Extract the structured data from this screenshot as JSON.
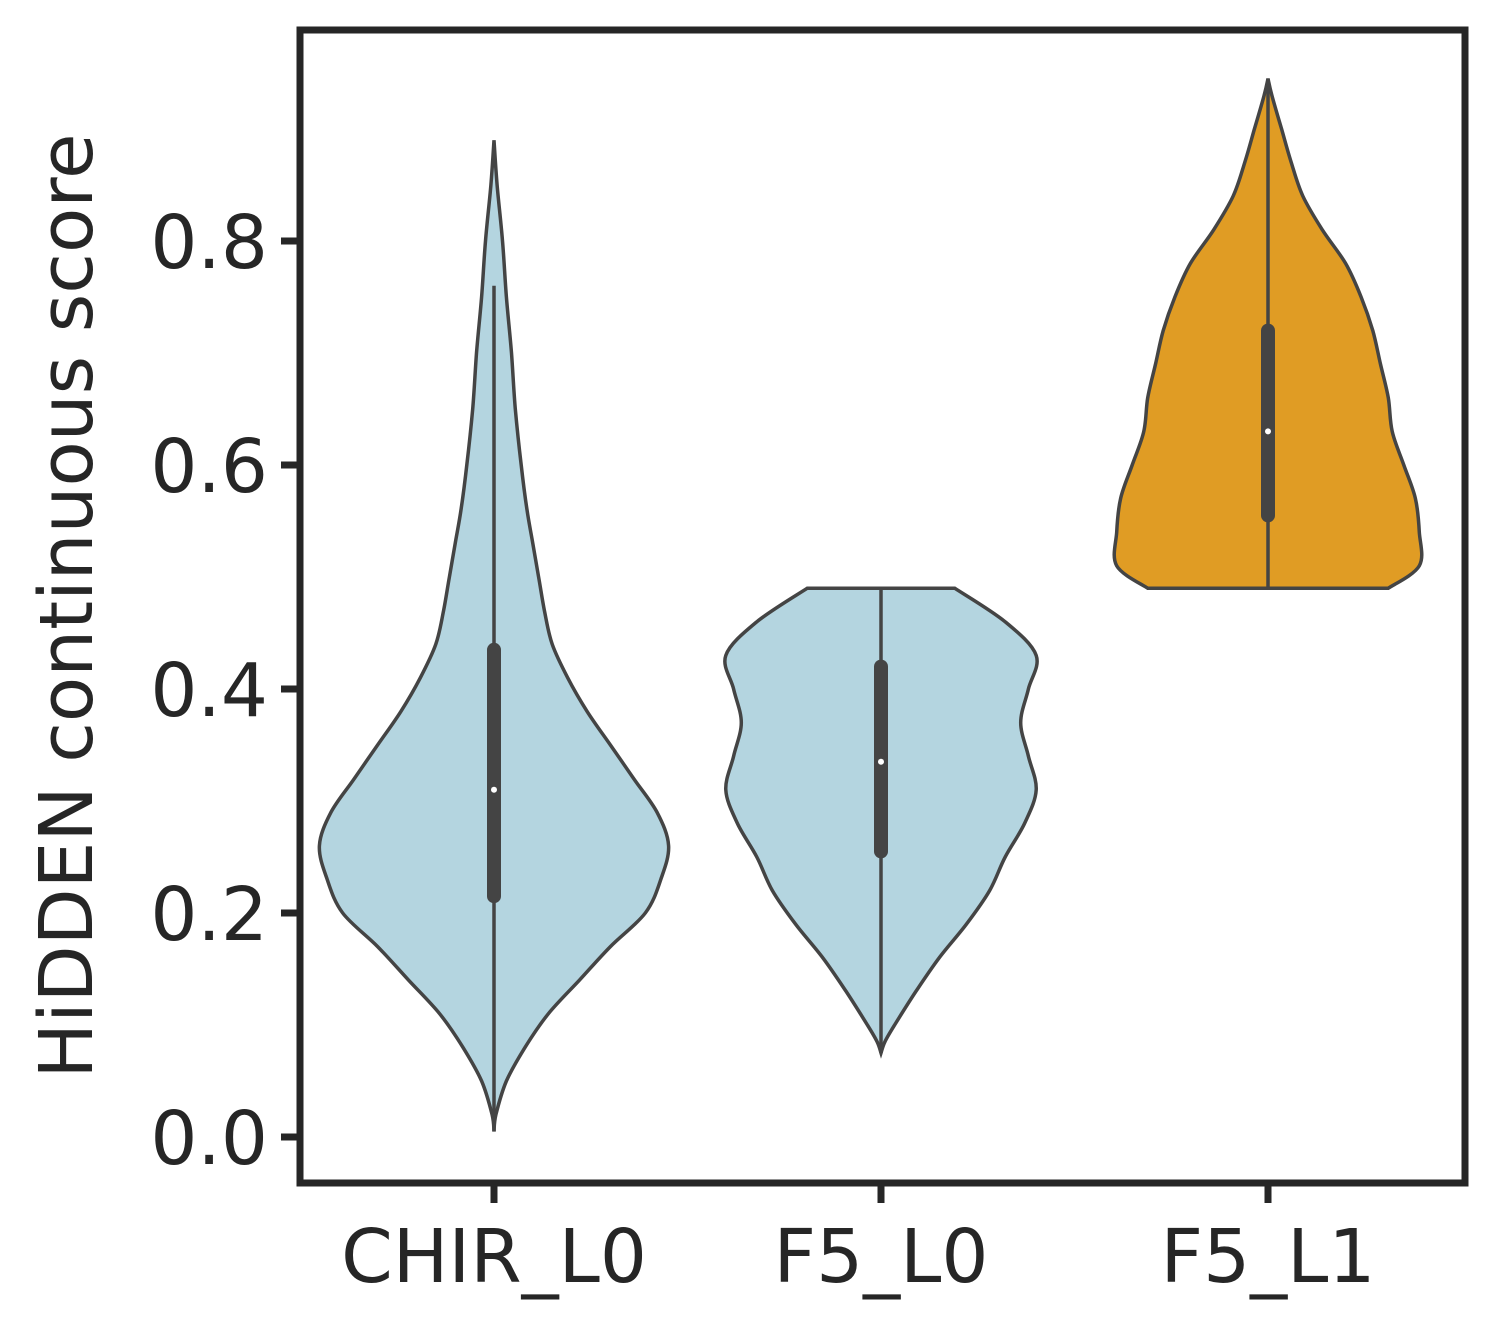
{
  "chart_data": {
    "type": "violin",
    "title": "",
    "xlabel": "",
    "ylabel": "HiDDEN continuous score",
    "ylim": [
      -0.04,
      0.99
    ],
    "yticks": [
      0.0,
      0.2,
      0.4,
      0.6,
      0.8
    ],
    "ytick_labels": [
      "0.0",
      "0.2",
      "0.4",
      "0.6",
      "0.8"
    ],
    "grid": false,
    "legend": "none",
    "categories": [
      "CHIR_L0",
      "F5_L0",
      "F5_L1"
    ],
    "violins": [
      {
        "category": "CHIR_L0",
        "color": "#b4d5e0",
        "min": 0.005,
        "max": 0.89,
        "whisker_low": 0.005,
        "whisker_high": 0.76,
        "q1": 0.215,
        "median": 0.31,
        "q3": 0.435,
        "density": [
          [
            0.005,
            0.0
          ],
          [
            0.02,
            0.005
          ],
          [
            0.05,
            0.032
          ],
          [
            0.08,
            0.08
          ],
          [
            0.11,
            0.14
          ],
          [
            0.14,
            0.22
          ],
          [
            0.17,
            0.3
          ],
          [
            0.2,
            0.39
          ],
          [
            0.23,
            0.43
          ],
          [
            0.26,
            0.45
          ],
          [
            0.29,
            0.42
          ],
          [
            0.32,
            0.36
          ],
          [
            0.35,
            0.3
          ],
          [
            0.38,
            0.24
          ],
          [
            0.41,
            0.19
          ],
          [
            0.44,
            0.15
          ],
          [
            0.47,
            0.13
          ],
          [
            0.5,
            0.115
          ],
          [
            0.53,
            0.1
          ],
          [
            0.56,
            0.085
          ],
          [
            0.6,
            0.07
          ],
          [
            0.65,
            0.055
          ],
          [
            0.7,
            0.045
          ],
          [
            0.75,
            0.032
          ],
          [
            0.8,
            0.022
          ],
          [
            0.85,
            0.008
          ],
          [
            0.89,
            0.0
          ]
        ]
      },
      {
        "category": "F5_L0",
        "color": "#b4d5e0",
        "min": 0.075,
        "max": 0.49,
        "whisker_low": 0.075,
        "whisker_high": 0.49,
        "q1": 0.255,
        "median": 0.335,
        "q3": 0.42,
        "density": [
          [
            0.075,
            0.0
          ],
          [
            0.085,
            0.01
          ],
          [
            0.1,
            0.035
          ],
          [
            0.13,
            0.09
          ],
          [
            0.16,
            0.15
          ],
          [
            0.19,
            0.22
          ],
          [
            0.22,
            0.28
          ],
          [
            0.25,
            0.32
          ],
          [
            0.28,
            0.37
          ],
          [
            0.31,
            0.4
          ],
          [
            0.34,
            0.38
          ],
          [
            0.37,
            0.36
          ],
          [
            0.4,
            0.38
          ],
          [
            0.43,
            0.4
          ],
          [
            0.46,
            0.32
          ],
          [
            0.49,
            0.19
          ]
        ]
      },
      {
        "category": "F5_L1",
        "color": "#e09c24",
        "min": 0.49,
        "max": 0.945,
        "whisker_low": 0.49,
        "whisker_high": 0.945,
        "q1": 0.555,
        "median": 0.63,
        "q3": 0.72,
        "density": [
          [
            0.49,
            0.31
          ],
          [
            0.51,
            0.39
          ],
          [
            0.54,
            0.39
          ],
          [
            0.57,
            0.38
          ],
          [
            0.6,
            0.35
          ],
          [
            0.63,
            0.32
          ],
          [
            0.66,
            0.31
          ],
          [
            0.69,
            0.29
          ],
          [
            0.72,
            0.27
          ],
          [
            0.75,
            0.24
          ],
          [
            0.78,
            0.2
          ],
          [
            0.81,
            0.14
          ],
          [
            0.84,
            0.09
          ],
          [
            0.87,
            0.06
          ],
          [
            0.9,
            0.035
          ],
          [
            0.93,
            0.01
          ],
          [
            0.945,
            0.0
          ]
        ]
      }
    ]
  }
}
